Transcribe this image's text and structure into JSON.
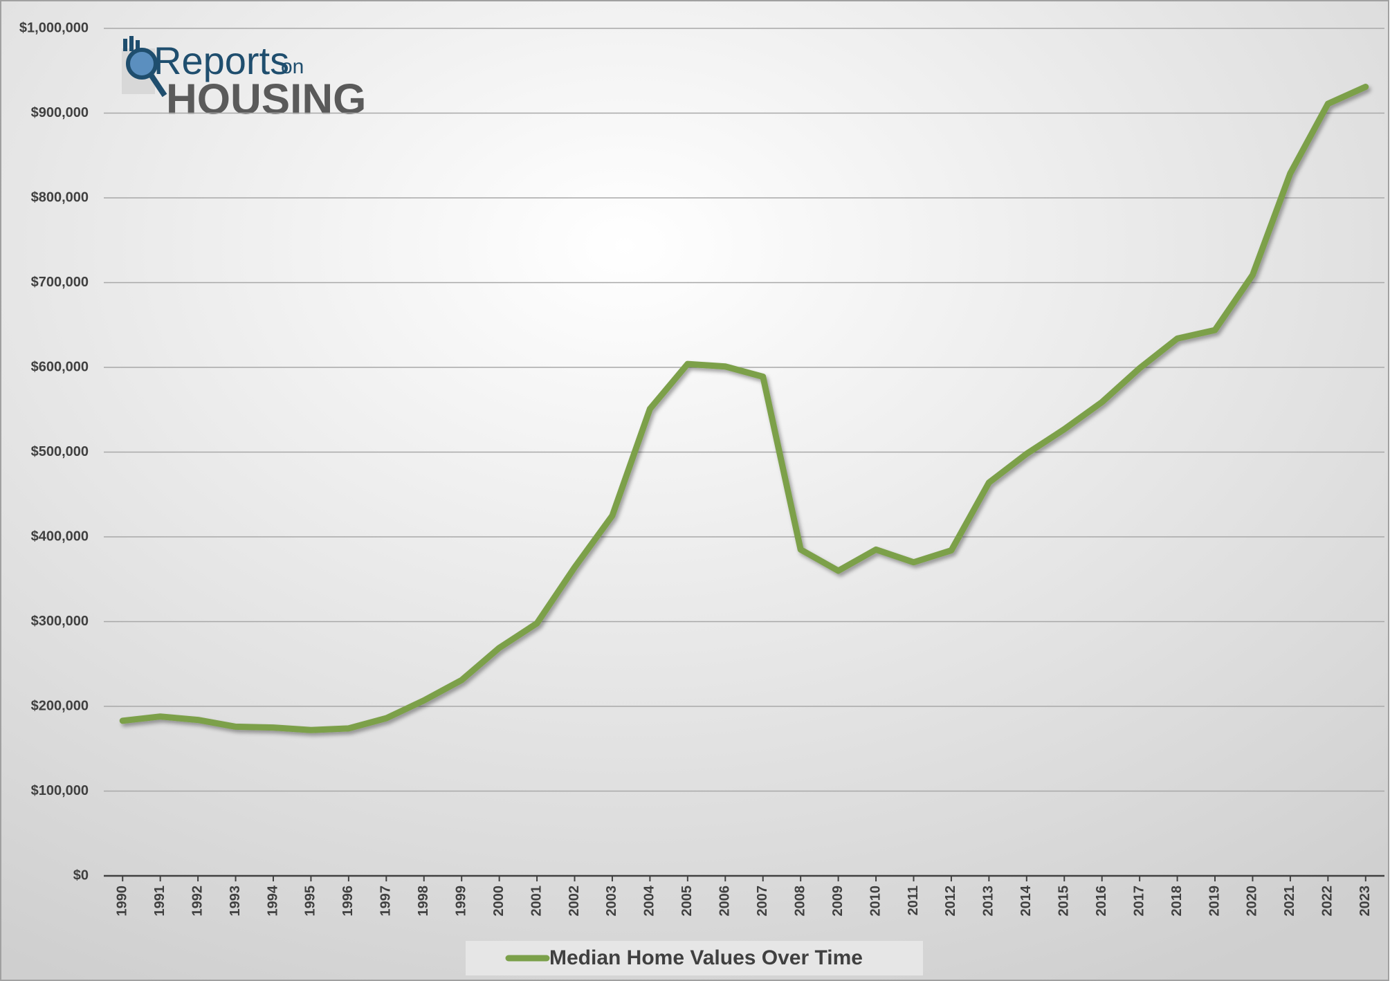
{
  "chart_data": {
    "type": "line",
    "logo": {
      "brand": "Reports",
      "connector": "on",
      "subject": "HOUSING"
    },
    "categories": [
      "1990",
      "1991",
      "1992",
      "1993",
      "1994",
      "1995",
      "1996",
      "1997",
      "1998",
      "1999",
      "2000",
      "2001",
      "2002",
      "2003",
      "2004",
      "2005",
      "2006",
      "2007",
      "2008",
      "2009",
      "2010",
      "2011",
      "2012",
      "2013",
      "2014",
      "2015",
      "2016",
      "2017",
      "2018",
      "2019",
      "2020",
      "2021",
      "2022",
      "2023"
    ],
    "series": [
      {
        "name": "Median Home Values Over Time",
        "color": "#7ba04a",
        "values": [
          183000,
          188000,
          184000,
          176000,
          175000,
          172000,
          174000,
          186000,
          207000,
          231000,
          269000,
          298000,
          364000,
          425000,
          551000,
          604000,
          601000,
          589000,
          385000,
          360000,
          385000,
          370000,
          384000,
          464000,
          498000,
          527000,
          559000,
          599000,
          634000,
          644000,
          709000,
          829000,
          911000,
          931000
        ]
      }
    ],
    "ylim": [
      0,
      1000000
    ],
    "yticks": [
      {
        "value": 0,
        "label": "$0"
      },
      {
        "value": 100000,
        "label": "$100,000"
      },
      {
        "value": 200000,
        "label": "$200,000"
      },
      {
        "value": 300000,
        "label": "$300,000"
      },
      {
        "value": 400000,
        "label": "$400,000"
      },
      {
        "value": 500000,
        "label": "$500,000"
      },
      {
        "value": 600000,
        "label": "$600,000"
      },
      {
        "value": 700000,
        "label": "$700,000"
      },
      {
        "value": 800000,
        "label": "$800,000"
      },
      {
        "value": 900000,
        "label": "$900,000"
      },
      {
        "value": 1000000,
        "label": "$1,000,000"
      }
    ],
    "grid": true,
    "legend": "bottom"
  }
}
